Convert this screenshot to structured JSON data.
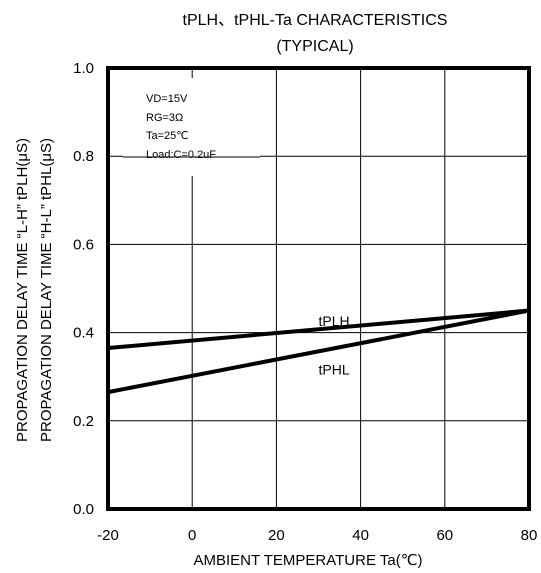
{
  "chart_data": {
    "type": "line",
    "title": "tPLH、tPHL-Ta  CHARACTERISTICS",
    "subtitle": "(TYPICAL)",
    "xlabel": "AMBIENT  TEMPERATURE  Ta(℃)",
    "ylabel_line1": "PROPAGATION  DELAY  TIME “L-H”  tPLH(μS)",
    "ylabel_line2": "PROPAGATION  DELAY  TIME “H-L”  tPHL(μS)",
    "xlim": [
      -20,
      80
    ],
    "ylim": [
      0.0,
      1.0
    ],
    "xticks": [
      -20,
      0,
      20,
      40,
      60,
      80
    ],
    "xtick_labels": [
      "-20",
      "0",
      "20",
      "40",
      "60",
      "80"
    ],
    "yticks": [
      0.0,
      0.2,
      0.4,
      0.6,
      0.8,
      1.0
    ],
    "ytick_labels": [
      "0.0",
      "0.2",
      "0.4",
      "0.6",
      "0.8",
      "1.0"
    ],
    "grid": true,
    "conditions": [
      "VD=15V",
      "RG=3Ω",
      "Ta=25℃",
      "Load:C=0.2uF"
    ],
    "series": [
      {
        "name": "tPLH",
        "x": [
          -20,
          80
        ],
        "y": [
          0.365,
          0.45
        ],
        "label_at": [
          30,
          0.415
        ]
      },
      {
        "name": "tPHL",
        "x": [
          -20,
          80
        ],
        "y": [
          0.265,
          0.45
        ],
        "label_at": [
          30,
          0.305
        ]
      }
    ],
    "line_color": "#000000"
  }
}
